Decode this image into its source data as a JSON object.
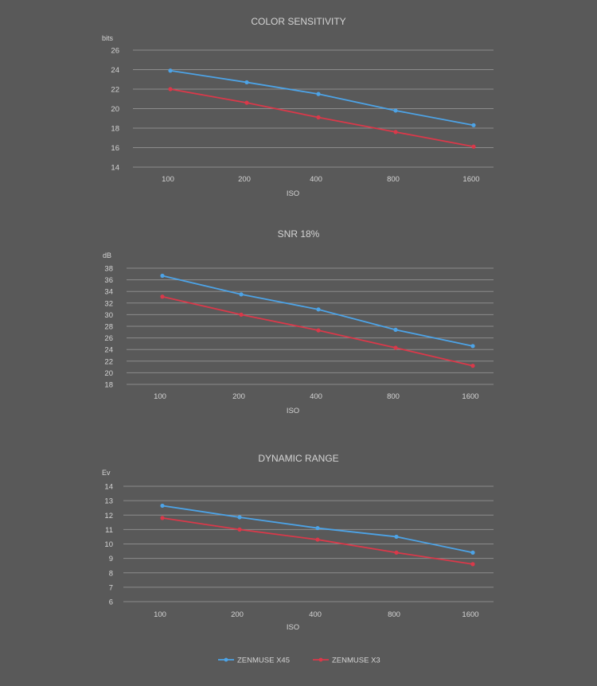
{
  "colors": {
    "background": "#595959",
    "grid": "#8c8c8c",
    "text": "#d4d4d4",
    "zenmuse_x45": "#4da3e6",
    "zenmuse_x3": "#d9394a"
  },
  "legend": {
    "position": "bottom-center",
    "items": [
      {
        "name": "ZENMUSE X45",
        "color": "#4da3e6"
      },
      {
        "name": "ZENMUSE X3",
        "color": "#d9394a"
      }
    ]
  },
  "chart_data": [
    {
      "type": "line",
      "title": "COLOR SENSITIVITY",
      "ylabel": "bits",
      "xlabel": "ISO",
      "categories": [
        "100",
        "200",
        "400",
        "800",
        "1600"
      ],
      "ylim": [
        14,
        26
      ],
      "yticks": [
        14,
        16,
        18,
        20,
        22,
        24,
        26
      ],
      "grid": true,
      "series": [
        {
          "name": "ZENMUSE X45",
          "values": [
            23.9,
            22.7,
            21.5,
            19.8,
            18.3
          ]
        },
        {
          "name": "ZENMUSE X3",
          "values": [
            22.0,
            20.6,
            19.1,
            17.6,
            16.1
          ]
        }
      ]
    },
    {
      "type": "line",
      "title": "SNR 18%",
      "ylabel": "dB",
      "xlabel": "ISO",
      "categories": [
        "100",
        "200",
        "400",
        "800",
        "1600"
      ],
      "ylim": [
        18,
        38
      ],
      "yticks": [
        18,
        20,
        22,
        24,
        26,
        28,
        30,
        32,
        34,
        36,
        38
      ],
      "grid": true,
      "series": [
        {
          "name": "ZENMUSE X45",
          "values": [
            36.7,
            33.5,
            30.9,
            27.4,
            24.6
          ]
        },
        {
          "name": "ZENMUSE X3",
          "values": [
            33.1,
            30.0,
            27.3,
            24.3,
            21.2
          ]
        }
      ]
    },
    {
      "type": "line",
      "title": "DYNAMIC RANGE",
      "ylabel": "Ev",
      "xlabel": "ISO",
      "categories": [
        "100",
        "200",
        "400",
        "800",
        "1600"
      ],
      "ylim": [
        6,
        14
      ],
      "yticks": [
        6,
        7,
        8,
        9,
        10,
        11,
        12,
        13,
        14
      ],
      "grid": true,
      "series": [
        {
          "name": "ZENMUSE X45",
          "values": [
            12.65,
            11.85,
            11.1,
            10.5,
            9.4
          ]
        },
        {
          "name": "ZENMUSE X3",
          "values": [
            11.8,
            11.0,
            10.3,
            9.4,
            8.6
          ]
        }
      ]
    }
  ]
}
